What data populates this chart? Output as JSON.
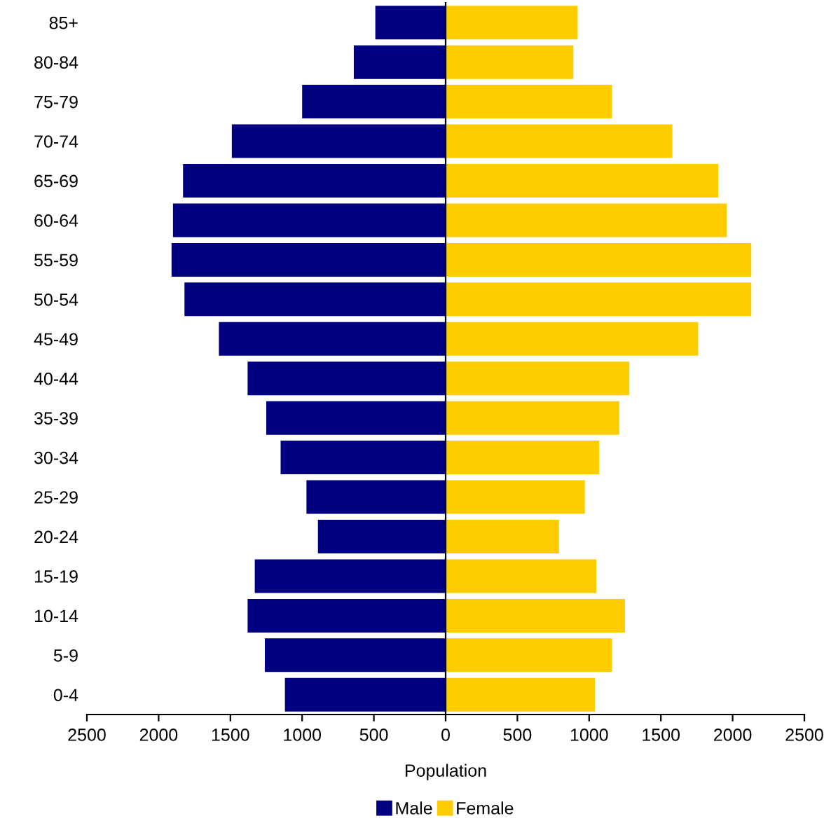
{
  "chart_data": {
    "type": "bar",
    "orientation": "horizontal",
    "xlabel": "Population",
    "categories": [
      "85+",
      "80-84",
      "75-79",
      "70-74",
      "65-69",
      "60-64",
      "55-59",
      "50-54",
      "45-49",
      "40-44",
      "35-39",
      "30-34",
      "25-29",
      "20-24",
      "15-19",
      "10-14",
      "5-9",
      "0-4"
    ],
    "series": [
      {
        "name": "Male",
        "color": "#000080",
        "values": [
          -490,
          -640,
          -1000,
          -1490,
          -1830,
          -1900,
          -1910,
          -1820,
          -1580,
          -1380,
          -1250,
          -1150,
          -970,
          -890,
          -1330,
          -1380,
          -1260,
          -1120
        ]
      },
      {
        "name": "Female",
        "color": "#ffcc00",
        "values": [
          920,
          890,
          1160,
          1580,
          1900,
          1960,
          2130,
          2130,
          1760,
          1280,
          1210,
          1070,
          970,
          790,
          1050,
          1250,
          1160,
          1040
        ]
      }
    ],
    "xlim": [
      -2500,
      2500
    ],
    "xticks": [
      {
        "value": -2500,
        "label": "2500"
      },
      {
        "value": -2000,
        "label": "2000"
      },
      {
        "value": -1500,
        "label": "1500"
      },
      {
        "value": -1000,
        "label": "1000"
      },
      {
        "value": -500,
        "label": "500"
      },
      0,
      500,
      1000,
      1500,
      2000,
      2500
    ],
    "stacked": true,
    "legend": "bottom"
  }
}
